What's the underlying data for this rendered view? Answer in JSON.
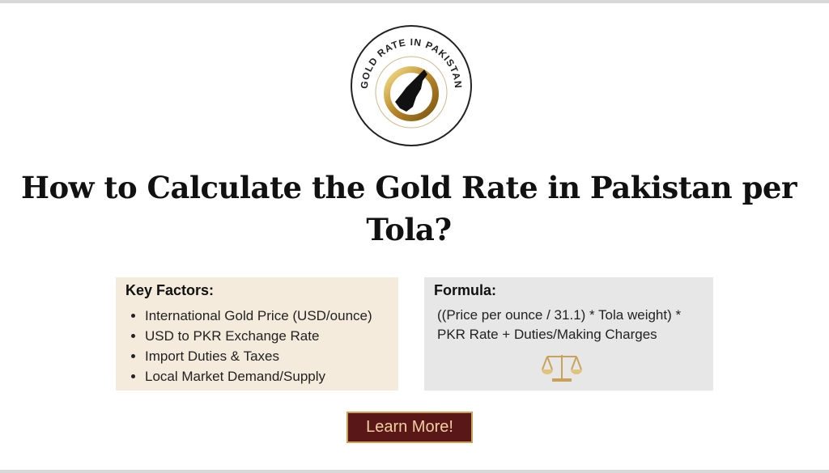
{
  "logo": {
    "text": "GOLD RATE IN PAKISTAN"
  },
  "title": "How to Calculate the Gold Rate in Pakistan per Tola?",
  "key_factors": {
    "heading": "Key Factors:",
    "items": [
      "International Gold Price (USD/ounce)",
      "USD to PKR Exchange Rate",
      "Import Duties & Taxes",
      "Local Market Demand/Supply"
    ]
  },
  "formula": {
    "heading": "Formula:",
    "text": "((Price per ounce / 31.1) * Tola weight) * PKR Rate + Duties/Making Charges",
    "icon": "balance-scale-icon"
  },
  "button": {
    "label": "Learn More!"
  },
  "colors": {
    "button_bg": "#5a1717",
    "button_text": "#f2cfa2",
    "gold": "#c9a25a",
    "key_factors_bg": "#f4ebdc",
    "formula_bg": "#e7e7e7"
  }
}
